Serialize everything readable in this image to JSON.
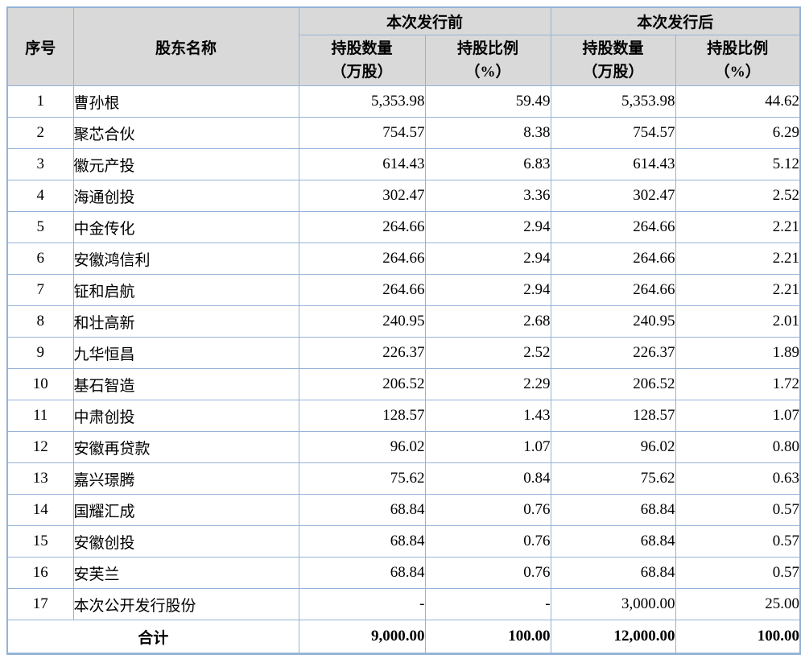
{
  "colors": {
    "border": "#95B3D7",
    "header_bg": "#D9D9D9",
    "text": "#000000",
    "page_bg": "#FFFFFF"
  },
  "table": {
    "header": {
      "col_no": "序号",
      "col_name": "股东名称",
      "group_before": "本次发行前",
      "group_after": "本次发行后",
      "qty_line1": "持股数量",
      "qty_line2": "（万股）",
      "pct_line1": "持股比例",
      "pct_line2": "（%）"
    },
    "rows": [
      {
        "no": "1",
        "name": "曹孙根",
        "qty_before": "5,353.98",
        "pct_before": "59.49",
        "qty_after": "5,353.98",
        "pct_after": "44.62"
      },
      {
        "no": "2",
        "name": "聚芯合伙",
        "qty_before": "754.57",
        "pct_before": "8.38",
        "qty_after": "754.57",
        "pct_after": "6.29"
      },
      {
        "no": "3",
        "name": "徽元产投",
        "qty_before": "614.43",
        "pct_before": "6.83",
        "qty_after": "614.43",
        "pct_after": "5.12"
      },
      {
        "no": "4",
        "name": "海通创投",
        "qty_before": "302.47",
        "pct_before": "3.36",
        "qty_after": "302.47",
        "pct_after": "2.52"
      },
      {
        "no": "5",
        "name": "中金传化",
        "qty_before": "264.66",
        "pct_before": "2.94",
        "qty_after": "264.66",
        "pct_after": "2.21"
      },
      {
        "no": "6",
        "name": "安徽鸿信利",
        "qty_before": "264.66",
        "pct_before": "2.94",
        "qty_after": "264.66",
        "pct_after": "2.21"
      },
      {
        "no": "7",
        "name": "钲和启航",
        "qty_before": "264.66",
        "pct_before": "2.94",
        "qty_after": "264.66",
        "pct_after": "2.21"
      },
      {
        "no": "8",
        "name": "和壮高新",
        "qty_before": "240.95",
        "pct_before": "2.68",
        "qty_after": "240.95",
        "pct_after": "2.01"
      },
      {
        "no": "9",
        "name": "九华恒昌",
        "qty_before": "226.37",
        "pct_before": "2.52",
        "qty_after": "226.37",
        "pct_after": "1.89"
      },
      {
        "no": "10",
        "name": "基石智造",
        "qty_before": "206.52",
        "pct_before": "2.29",
        "qty_after": "206.52",
        "pct_after": "1.72"
      },
      {
        "no": "11",
        "name": "中肃创投",
        "qty_before": "128.57",
        "pct_before": "1.43",
        "qty_after": "128.57",
        "pct_after": "1.07"
      },
      {
        "no": "12",
        "name": "安徽再贷款",
        "qty_before": "96.02",
        "pct_before": "1.07",
        "qty_after": "96.02",
        "pct_after": "0.80"
      },
      {
        "no": "13",
        "name": "嘉兴璟腾",
        "qty_before": "75.62",
        "pct_before": "0.84",
        "qty_after": "75.62",
        "pct_after": "0.63"
      },
      {
        "no": "14",
        "name": "国耀汇成",
        "qty_before": "68.84",
        "pct_before": "0.76",
        "qty_after": "68.84",
        "pct_after": "0.57"
      },
      {
        "no": "15",
        "name": "安徽创投",
        "qty_before": "68.84",
        "pct_before": "0.76",
        "qty_after": "68.84",
        "pct_after": "0.57"
      },
      {
        "no": "16",
        "name": "安芙兰",
        "qty_before": "68.84",
        "pct_before": "0.76",
        "qty_after": "68.84",
        "pct_after": "0.57"
      },
      {
        "no": "17",
        "name": "本次公开发行股份",
        "qty_before": "-",
        "pct_before": "-",
        "qty_after": "3,000.00",
        "pct_after": "25.00"
      }
    ],
    "total": {
      "label": "合计",
      "qty_before": "9,000.00",
      "pct_before": "100.00",
      "qty_after": "12,000.00",
      "pct_after": "100.00"
    }
  }
}
